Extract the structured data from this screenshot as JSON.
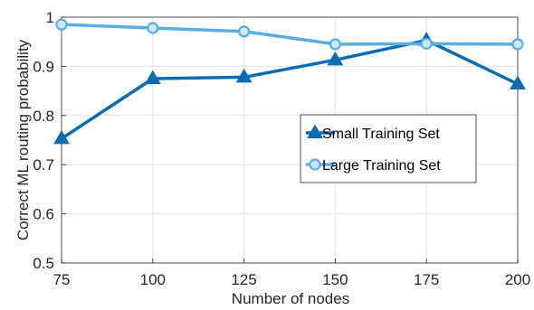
{
  "chart_data": {
    "type": "line",
    "xlabel": "Number of nodes",
    "ylabel": "Correct ML routing probability",
    "x": [
      75,
      100,
      125,
      150,
      175,
      200
    ],
    "xlim": [
      75,
      200
    ],
    "ylim": [
      0.5,
      1
    ],
    "xticks": [
      "75",
      "100",
      "125",
      "150",
      "175",
      "200"
    ],
    "yticks": [
      "0.5",
      "0.6",
      "0.7",
      "0.8",
      "0.9",
      "1"
    ],
    "grid": true,
    "legend_position": "center-right",
    "series": [
      {
        "name": "Small Training Set",
        "marker": "triangle",
        "color": "#0a6db3",
        "values": [
          0.753,
          0.875,
          0.878,
          0.913,
          0.953,
          0.864
        ]
      },
      {
        "name": "Large Training Set",
        "marker": "circle",
        "color": "#5aaee3",
        "values": [
          0.985,
          0.978,
          0.971,
          0.945,
          0.946,
          0.945
        ]
      }
    ]
  }
}
